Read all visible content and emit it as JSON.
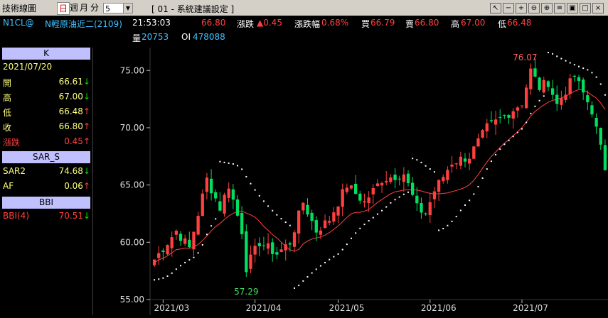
{
  "window": {
    "title": "技術線圖",
    "period_tabs": [
      "日",
      "週",
      "月",
      "分"
    ],
    "period_value": "5",
    "study_title": "[ 01 - 系統建議設定 ]",
    "toolbar_icons": [
      "cursor-icon",
      "minus-icon",
      "plus-icon",
      "zoom-out-icon",
      "zoom-in-icon",
      "settings-icon",
      "save-icon",
      "restore-icon",
      "close-icon"
    ]
  },
  "quote": {
    "symbol": "N1CL@",
    "name": "N輕原油近二(2109)",
    "time": "21:53:03",
    "last": "66.80",
    "change_label": "漲跌",
    "change": "▲0.45",
    "change_pct_label": "漲跌幅",
    "change_pct": "0.68%",
    "bid_label": "買",
    "bid": "66.79",
    "ask_label": "賣",
    "ask": "66.80",
    "high_label": "高",
    "high": "67.00",
    "low_label": "低",
    "low": "66.48",
    "volume_label": "量",
    "volume": "20753",
    "oi_label": "OI",
    "oi": "478088"
  },
  "panel": {
    "k_header": "K",
    "date": "2021/07/20",
    "k_rows": [
      {
        "label": "開",
        "value": "66.61",
        "arrow": "↓",
        "color": "#ffff80",
        "arrow_color": "#00e000"
      },
      {
        "label": "高",
        "value": "67.00",
        "arrow": "↓",
        "color": "#ffff80",
        "arrow_color": "#00e000"
      },
      {
        "label": "低",
        "value": "66.48",
        "arrow": "↑",
        "color": "#ffff80",
        "arrow_color": "#ff4040"
      },
      {
        "label": "收",
        "value": "66.80",
        "arrow": "↑",
        "color": "#ffff80",
        "arrow_color": "#ff4040"
      },
      {
        "label": "漲跌",
        "value": "0.45",
        "arrow": "↑",
        "color": "#ff4040",
        "arrow_color": "#ff4040"
      }
    ],
    "sar_header": "SAR_S",
    "sar_rows": [
      {
        "label": "SAR2",
        "value": "74.68",
        "arrow": "↓",
        "color": "#ffff80",
        "arrow_color": "#00e000"
      },
      {
        "label": "AF",
        "value": "0.06",
        "arrow": "↑",
        "color": "#ffff80",
        "arrow_color": "#ff4040"
      }
    ],
    "bbi_header": "BBI",
    "bbi_rows": [
      {
        "label": "BBI(4)",
        "value": "70.51",
        "arrow": "↓",
        "color": "#ff4040",
        "arrow_color": "#00e000"
      }
    ]
  },
  "chart_data": {
    "type": "candlestick",
    "yticks": [
      "75.00",
      "70.00",
      "65.00",
      "60.00",
      "55.00"
    ],
    "ytick_values": [
      75,
      70,
      65,
      60,
      55
    ],
    "ylim": [
      55,
      77
    ],
    "xticks": [
      "2021/03",
      "2021/04",
      "2021/05",
      "2021/06",
      "2021/07"
    ],
    "xtick_index": [
      2,
      23,
      42,
      63,
      84
    ],
    "max_label": "76.07",
    "max_index": 86,
    "min_label": "57.29",
    "min_index": 21,
    "up_color": "#ff4040",
    "down_color": "#00e060",
    "sar_color": "#ffffff",
    "bbi_color": "#ff4040"
  }
}
